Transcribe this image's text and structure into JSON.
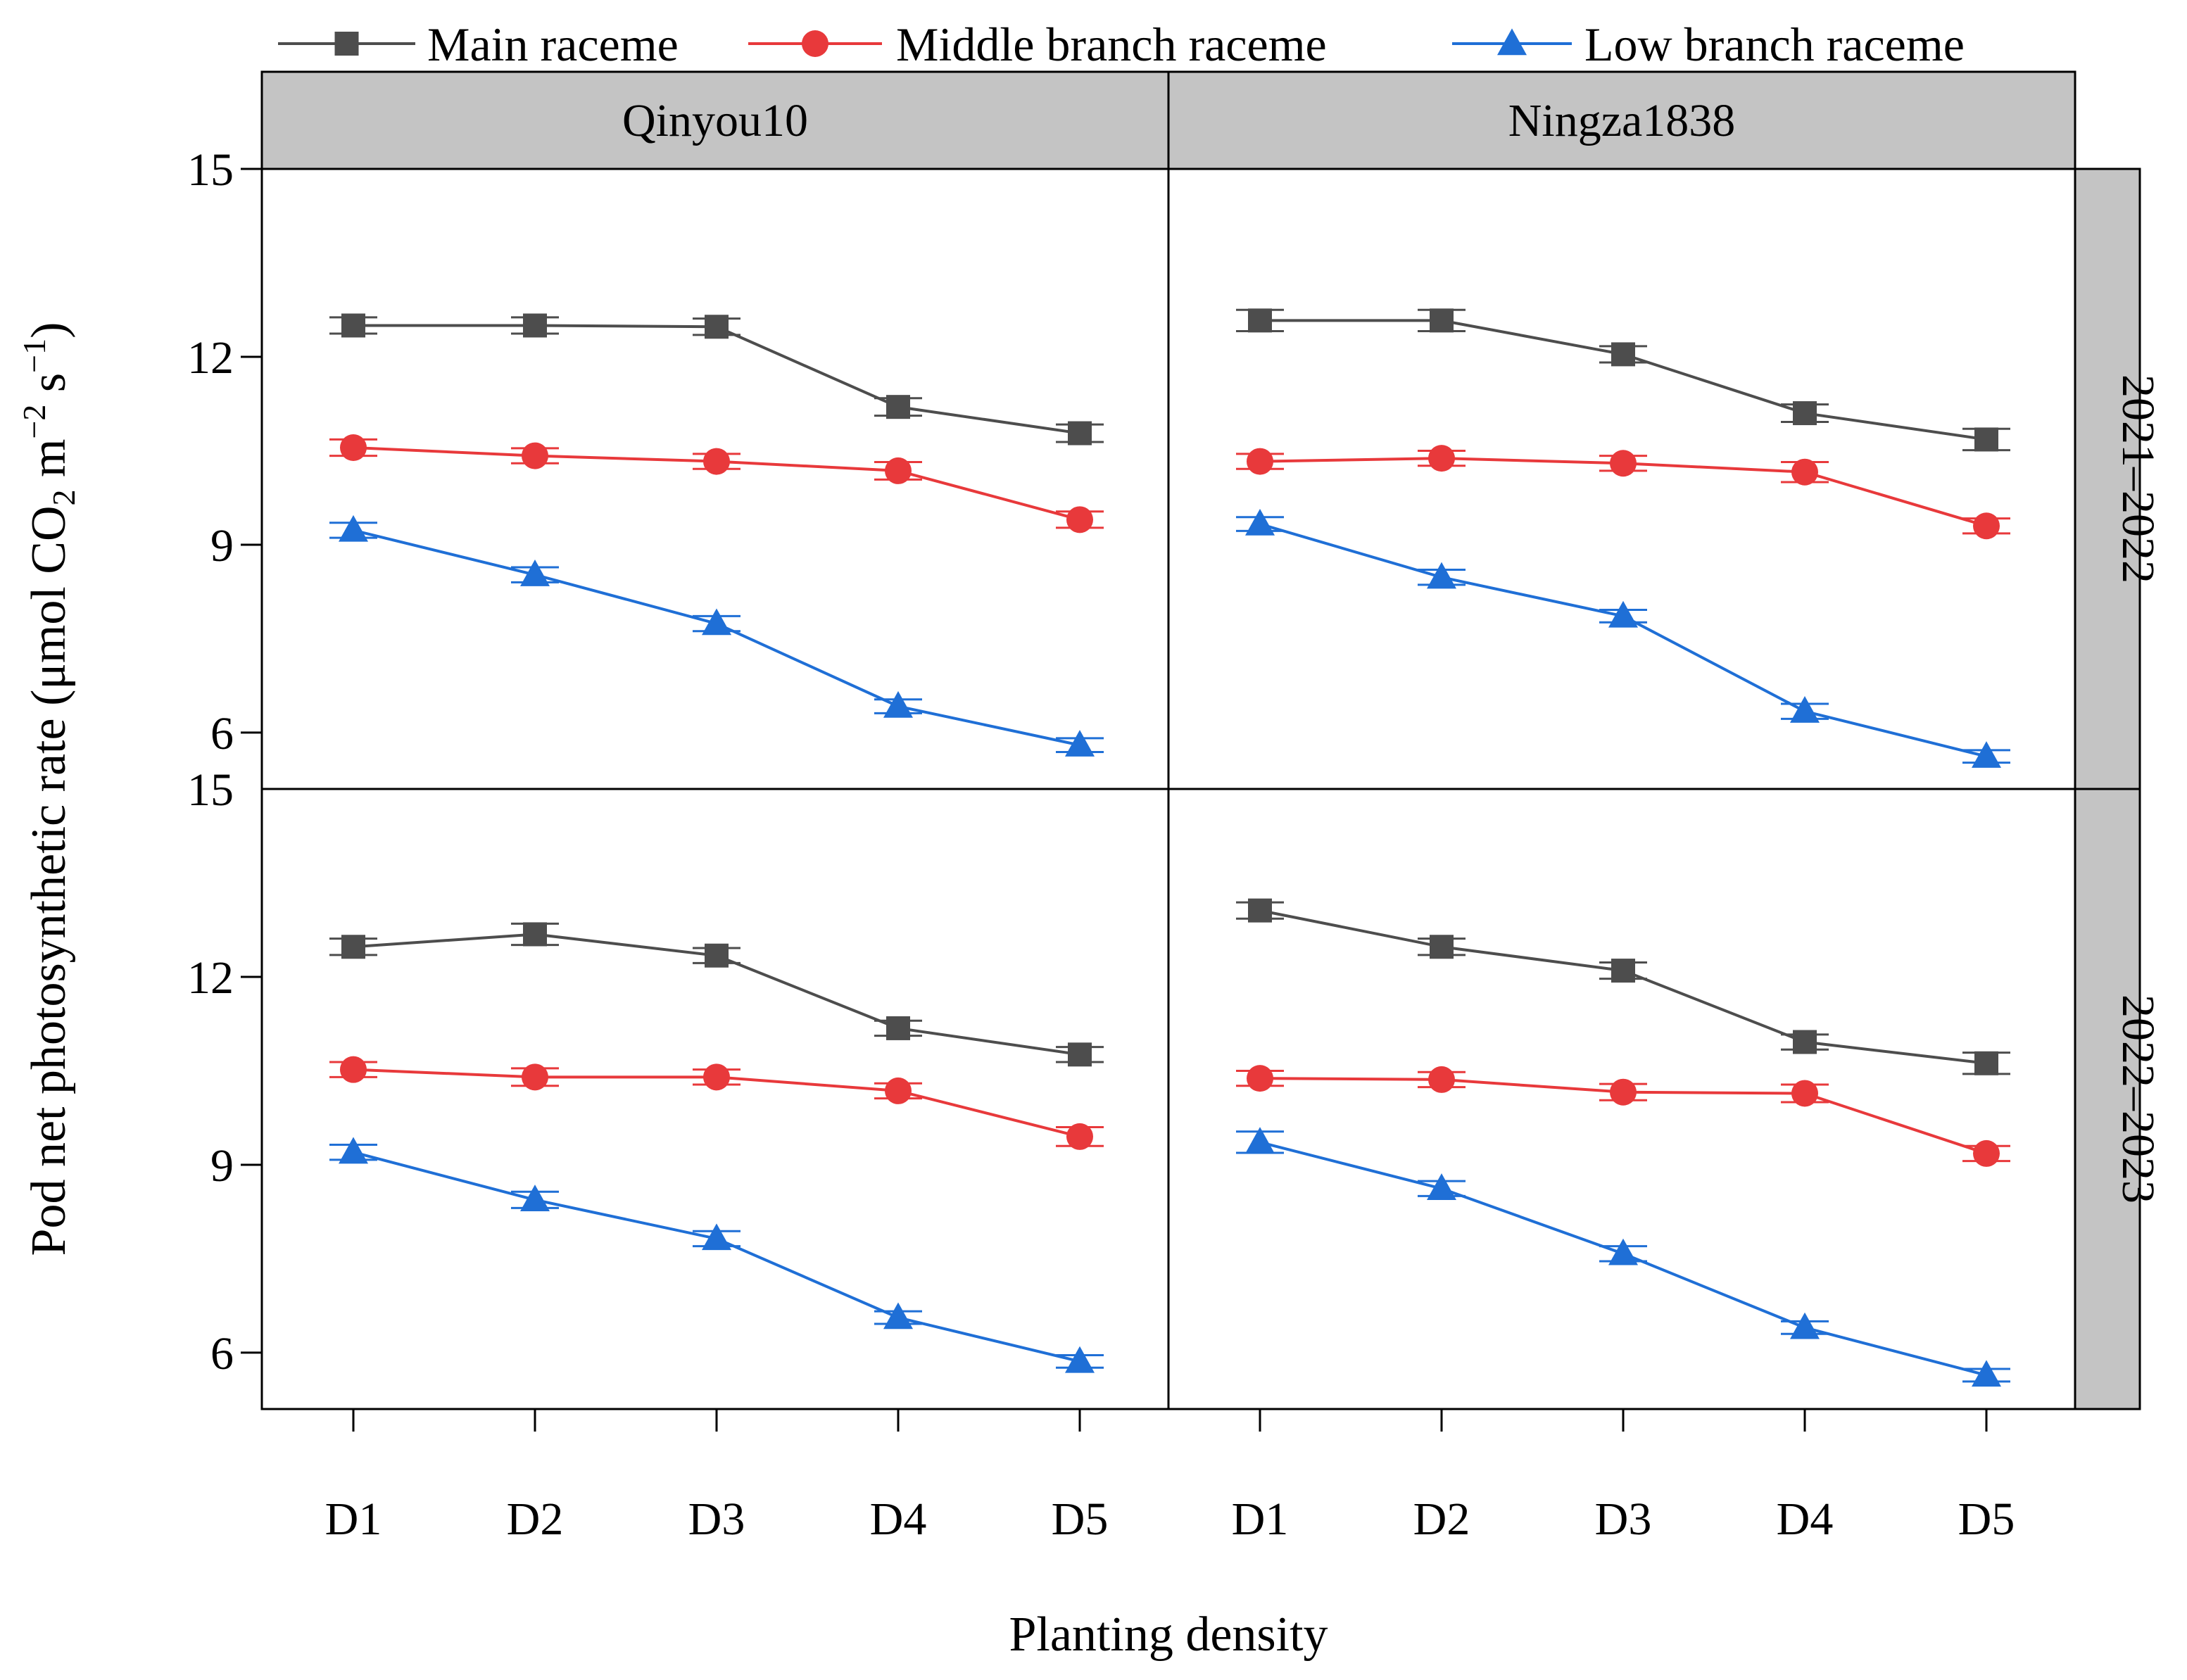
{
  "chart_data": {
    "type": "line",
    "ylabel": "Pod net photosynthetic rate (μmol CO₂ m⁻² s⁻¹)",
    "ylabel_parts": {
      "before": "Pod net photosynthetic rate (μmol CO",
      "sub": "2",
      "mid1": " m",
      "sup1": "−2",
      "mid2": " s",
      "sup2": "−1",
      "after": ")"
    },
    "xlabel": "Planting density",
    "categories": [
      "D1",
      "D2",
      "D3",
      "D4",
      "D5"
    ],
    "ylim": [
      5.1,
      15
    ],
    "yticks": [
      "6",
      "9",
      "12",
      "15"
    ],
    "columns": [
      "Qinyou10",
      "Ningza1838"
    ],
    "rows": [
      "2021–2022",
      "2022–2023"
    ],
    "series": [
      {
        "name": "Main raceme",
        "color": "#4d4d4d",
        "marker": "square"
      },
      {
        "name": "Middle branch raceme",
        "color": "#e8393b",
        "marker": "circle"
      },
      {
        "name": "Low branch raceme",
        "color": "#1f6fd6",
        "marker": "triangle"
      }
    ],
    "panels": [
      {
        "row": 0,
        "col": 0,
        "values": [
          [
            12.5,
            12.5,
            12.48,
            11.2,
            10.78
          ],
          [
            10.55,
            10.42,
            10.33,
            10.18,
            9.4
          ],
          [
            9.23,
            8.52,
            7.74,
            6.42,
            5.8
          ]
        ],
        "err": [
          [
            0.13,
            0.13,
            0.13,
            0.14,
            0.14
          ],
          [
            0.13,
            0.12,
            0.12,
            0.14,
            0.13
          ],
          [
            0.12,
            0.12,
            0.12,
            0.11,
            0.11
          ]
        ]
      },
      {
        "row": 0,
        "col": 1,
        "values": [
          [
            12.58,
            12.58,
            12.04,
            11.1,
            10.68
          ],
          [
            10.33,
            10.38,
            10.3,
            10.16,
            9.3
          ],
          [
            9.33,
            8.48,
            7.86,
            6.34,
            5.62
          ]
        ],
        "err": [
          [
            0.17,
            0.17,
            0.13,
            0.14,
            0.17
          ],
          [
            0.12,
            0.12,
            0.12,
            0.16,
            0.12
          ],
          [
            0.11,
            0.12,
            0.1,
            0.12,
            0.1
          ]
        ]
      },
      {
        "row": 1,
        "col": 0,
        "values": [
          [
            12.48,
            12.68,
            12.34,
            11.18,
            10.76
          ],
          [
            10.52,
            10.4,
            10.4,
            10.18,
            9.45
          ],
          [
            9.2,
            8.44,
            7.82,
            6.56,
            5.86
          ]
        ],
        "err": [
          [
            0.13,
            0.17,
            0.12,
            0.12,
            0.12
          ],
          [
            0.12,
            0.14,
            0.12,
            0.12,
            0.15
          ],
          [
            0.12,
            0.13,
            0.12,
            0.1,
            0.1
          ]
        ]
      },
      {
        "row": 1,
        "col": 1,
        "values": [
          [
            13.06,
            12.48,
            12.1,
            10.96,
            10.62
          ],
          [
            10.38,
            10.36,
            10.16,
            10.14,
            9.18
          ],
          [
            9.36,
            8.62,
            7.58,
            6.4,
            5.64
          ]
        ],
        "err": [
          [
            0.13,
            0.13,
            0.13,
            0.12,
            0.17
          ],
          [
            0.12,
            0.12,
            0.13,
            0.14,
            0.12
          ],
          [
            0.17,
            0.12,
            0.12,
            0.1,
            0.1
          ]
        ]
      }
    ]
  }
}
